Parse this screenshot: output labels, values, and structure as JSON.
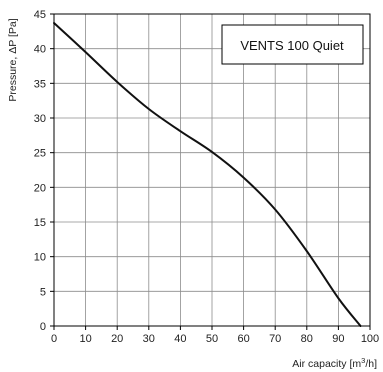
{
  "chart_data": {
    "type": "line",
    "title": "",
    "xlabel_main": "Air capacity [m",
    "xlabel_sup": "3",
    "xlabel_end": "/h]",
    "ylabel": "Pressure, ΔP [Pa]",
    "xlim": [
      0,
      100
    ],
    "ylim": [
      0,
      45
    ],
    "xticks": [
      0,
      10,
      20,
      30,
      40,
      50,
      60,
      70,
      80,
      90,
      100
    ],
    "yticks": [
      0,
      5,
      10,
      15,
      20,
      25,
      30,
      35,
      40,
      45
    ],
    "grid": true,
    "legend_position": "top-right",
    "series": [
      {
        "name": "VENTS 100 Quiet",
        "color": "#111111",
        "x": [
          0,
          10,
          20,
          30,
          40,
          50,
          60,
          70,
          80,
          90,
          97
        ],
        "y": [
          43.7,
          39.5,
          35.2,
          31.3,
          28.1,
          25.1,
          21.4,
          16.8,
          10.8,
          4.0,
          0
        ]
      }
    ]
  }
}
